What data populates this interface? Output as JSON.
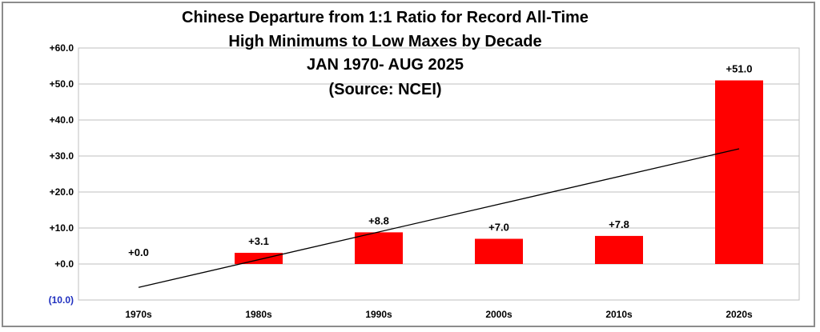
{
  "chart_data": {
    "type": "bar",
    "title_lines": [
      "Chinese Departure from 1:1 Ratio for Record All-Time",
      "High Minimums to Low Maxes by Decade",
      "JAN 1970- AUG 2025",
      "(Source: NCEI)"
    ],
    "categories": [
      "1970s",
      "1980s",
      "1990s",
      "2000s",
      "2010s",
      "2020s"
    ],
    "values": [
      0.0,
      3.1,
      8.8,
      7.0,
      7.8,
      51.0
    ],
    "value_labels": [
      "+0.0",
      "+3.1",
      "+8.8",
      "+7.0",
      "+7.8",
      "+51.0"
    ],
    "ylim": [
      -10,
      60
    ],
    "yticks": [
      {
        "value": 60,
        "label": "+60.0",
        "color": "#000000"
      },
      {
        "value": 50,
        "label": "+50.0",
        "color": "#000000"
      },
      {
        "value": 40,
        "label": "+40.0",
        "color": "#000000"
      },
      {
        "value": 30,
        "label": "+30.0",
        "color": "#000000"
      },
      {
        "value": 20,
        "label": "+20.0",
        "color": "#000000"
      },
      {
        "value": 10,
        "label": "+10.0",
        "color": "#000000"
      },
      {
        "value": 0,
        "label": "+0.0",
        "color": "#000000"
      },
      {
        "value": -10,
        "label": "(10.0)",
        "color": "#1f2fbf"
      }
    ],
    "grid": true,
    "bar_color": "#ff0000",
    "trendline": {
      "start": -6.5,
      "end": 32.0,
      "color": "#000000"
    },
    "xlabel": "",
    "ylabel": ""
  }
}
